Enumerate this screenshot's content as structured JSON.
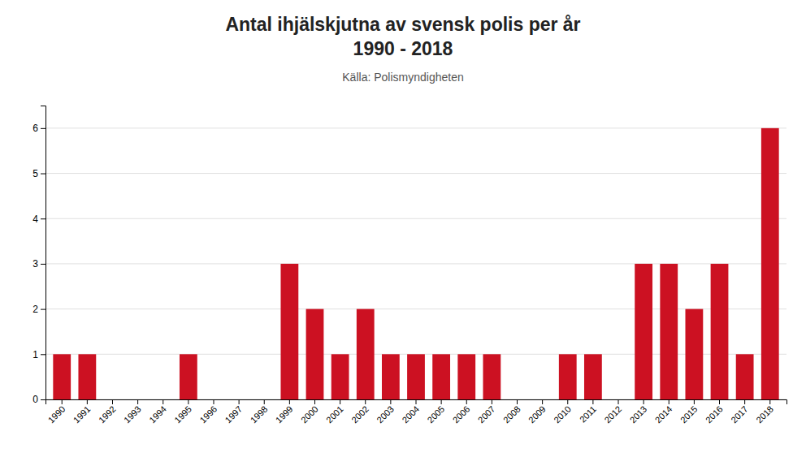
{
  "chart_data": {
    "type": "bar",
    "title": [
      "Antal ihjälskjutna av svensk polis per år",
      "1990 - 2018"
    ],
    "subtitle": "Källa: Polismyndigheten",
    "categories": [
      "1990",
      "1991",
      "1992",
      "1993",
      "1994",
      "1995",
      "1996",
      "1997",
      "1998",
      "1999",
      "2000",
      "2001",
      "2002",
      "2003",
      "2004",
      "2005",
      "2006",
      "2007",
      "2008",
      "2009",
      "2010",
      "2011",
      "2012",
      "2013",
      "2014",
      "2015",
      "2016",
      "2017",
      "2018"
    ],
    "values": [
      1,
      1,
      0,
      0,
      0,
      1,
      0,
      0,
      0,
      3,
      2,
      1,
      2,
      1,
      1,
      1,
      1,
      1,
      0,
      0,
      1,
      1,
      0,
      3,
      3,
      2,
      3,
      1,
      6
    ],
    "color": "#cc1122",
    "ylim": [
      0,
      6.5
    ],
    "yticks": [
      0,
      1,
      2,
      3,
      4,
      5,
      6
    ],
    "grid": true
  }
}
